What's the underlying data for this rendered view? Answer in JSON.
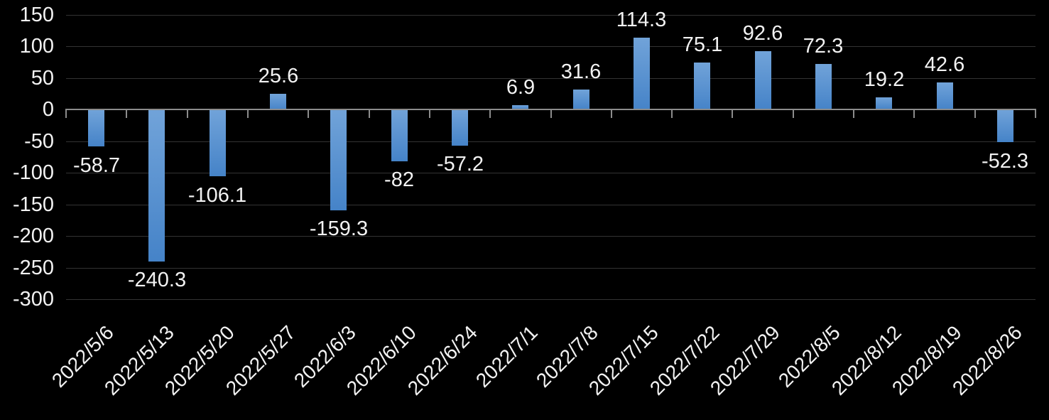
{
  "chart_data": {
    "type": "bar",
    "title": "",
    "xlabel": "",
    "ylabel": "",
    "categories": [
      "2022/5/6",
      "2022/5/13",
      "2022/5/20",
      "2022/5/27",
      "2022/6/3",
      "2022/6/10",
      "2022/6/24",
      "2022/7/1",
      "2022/7/8",
      "2022/7/15",
      "2022/7/22",
      "2022/7/29",
      "2022/8/5",
      "2022/8/12",
      "2022/8/19",
      "2022/8/26"
    ],
    "values": [
      -58.7,
      -240.3,
      -106.1,
      25.6,
      -159.3,
      -82,
      -57.2,
      6.9,
      31.6,
      114.3,
      75.1,
      92.6,
      72.3,
      19.2,
      42.6,
      -52.3
    ],
    "data_labels": [
      "-58.7",
      "-240.3",
      "-106.1",
      "25.6",
      "-159.3",
      "-82",
      "-57.2",
      "6.9",
      "31.6",
      "114.3",
      "75.1",
      "92.6",
      "72.3",
      "19.2",
      "42.6",
      "-52.3"
    ],
    "yticks": [
      150,
      100,
      50,
      0,
      -50,
      -100,
      -150,
      -200,
      -250,
      -300
    ],
    "ylim": [
      -300,
      150
    ],
    "grid": "horizontal",
    "legend": "none",
    "x_label_rotation_deg": 45,
    "colors": {
      "background": "#000000",
      "text": "#f2f2f2",
      "gridline": "#333333",
      "axis": "#8c8c8c",
      "bar_gradient_top": "#71a3d9",
      "bar_gradient_bottom": "#4583c8"
    }
  }
}
